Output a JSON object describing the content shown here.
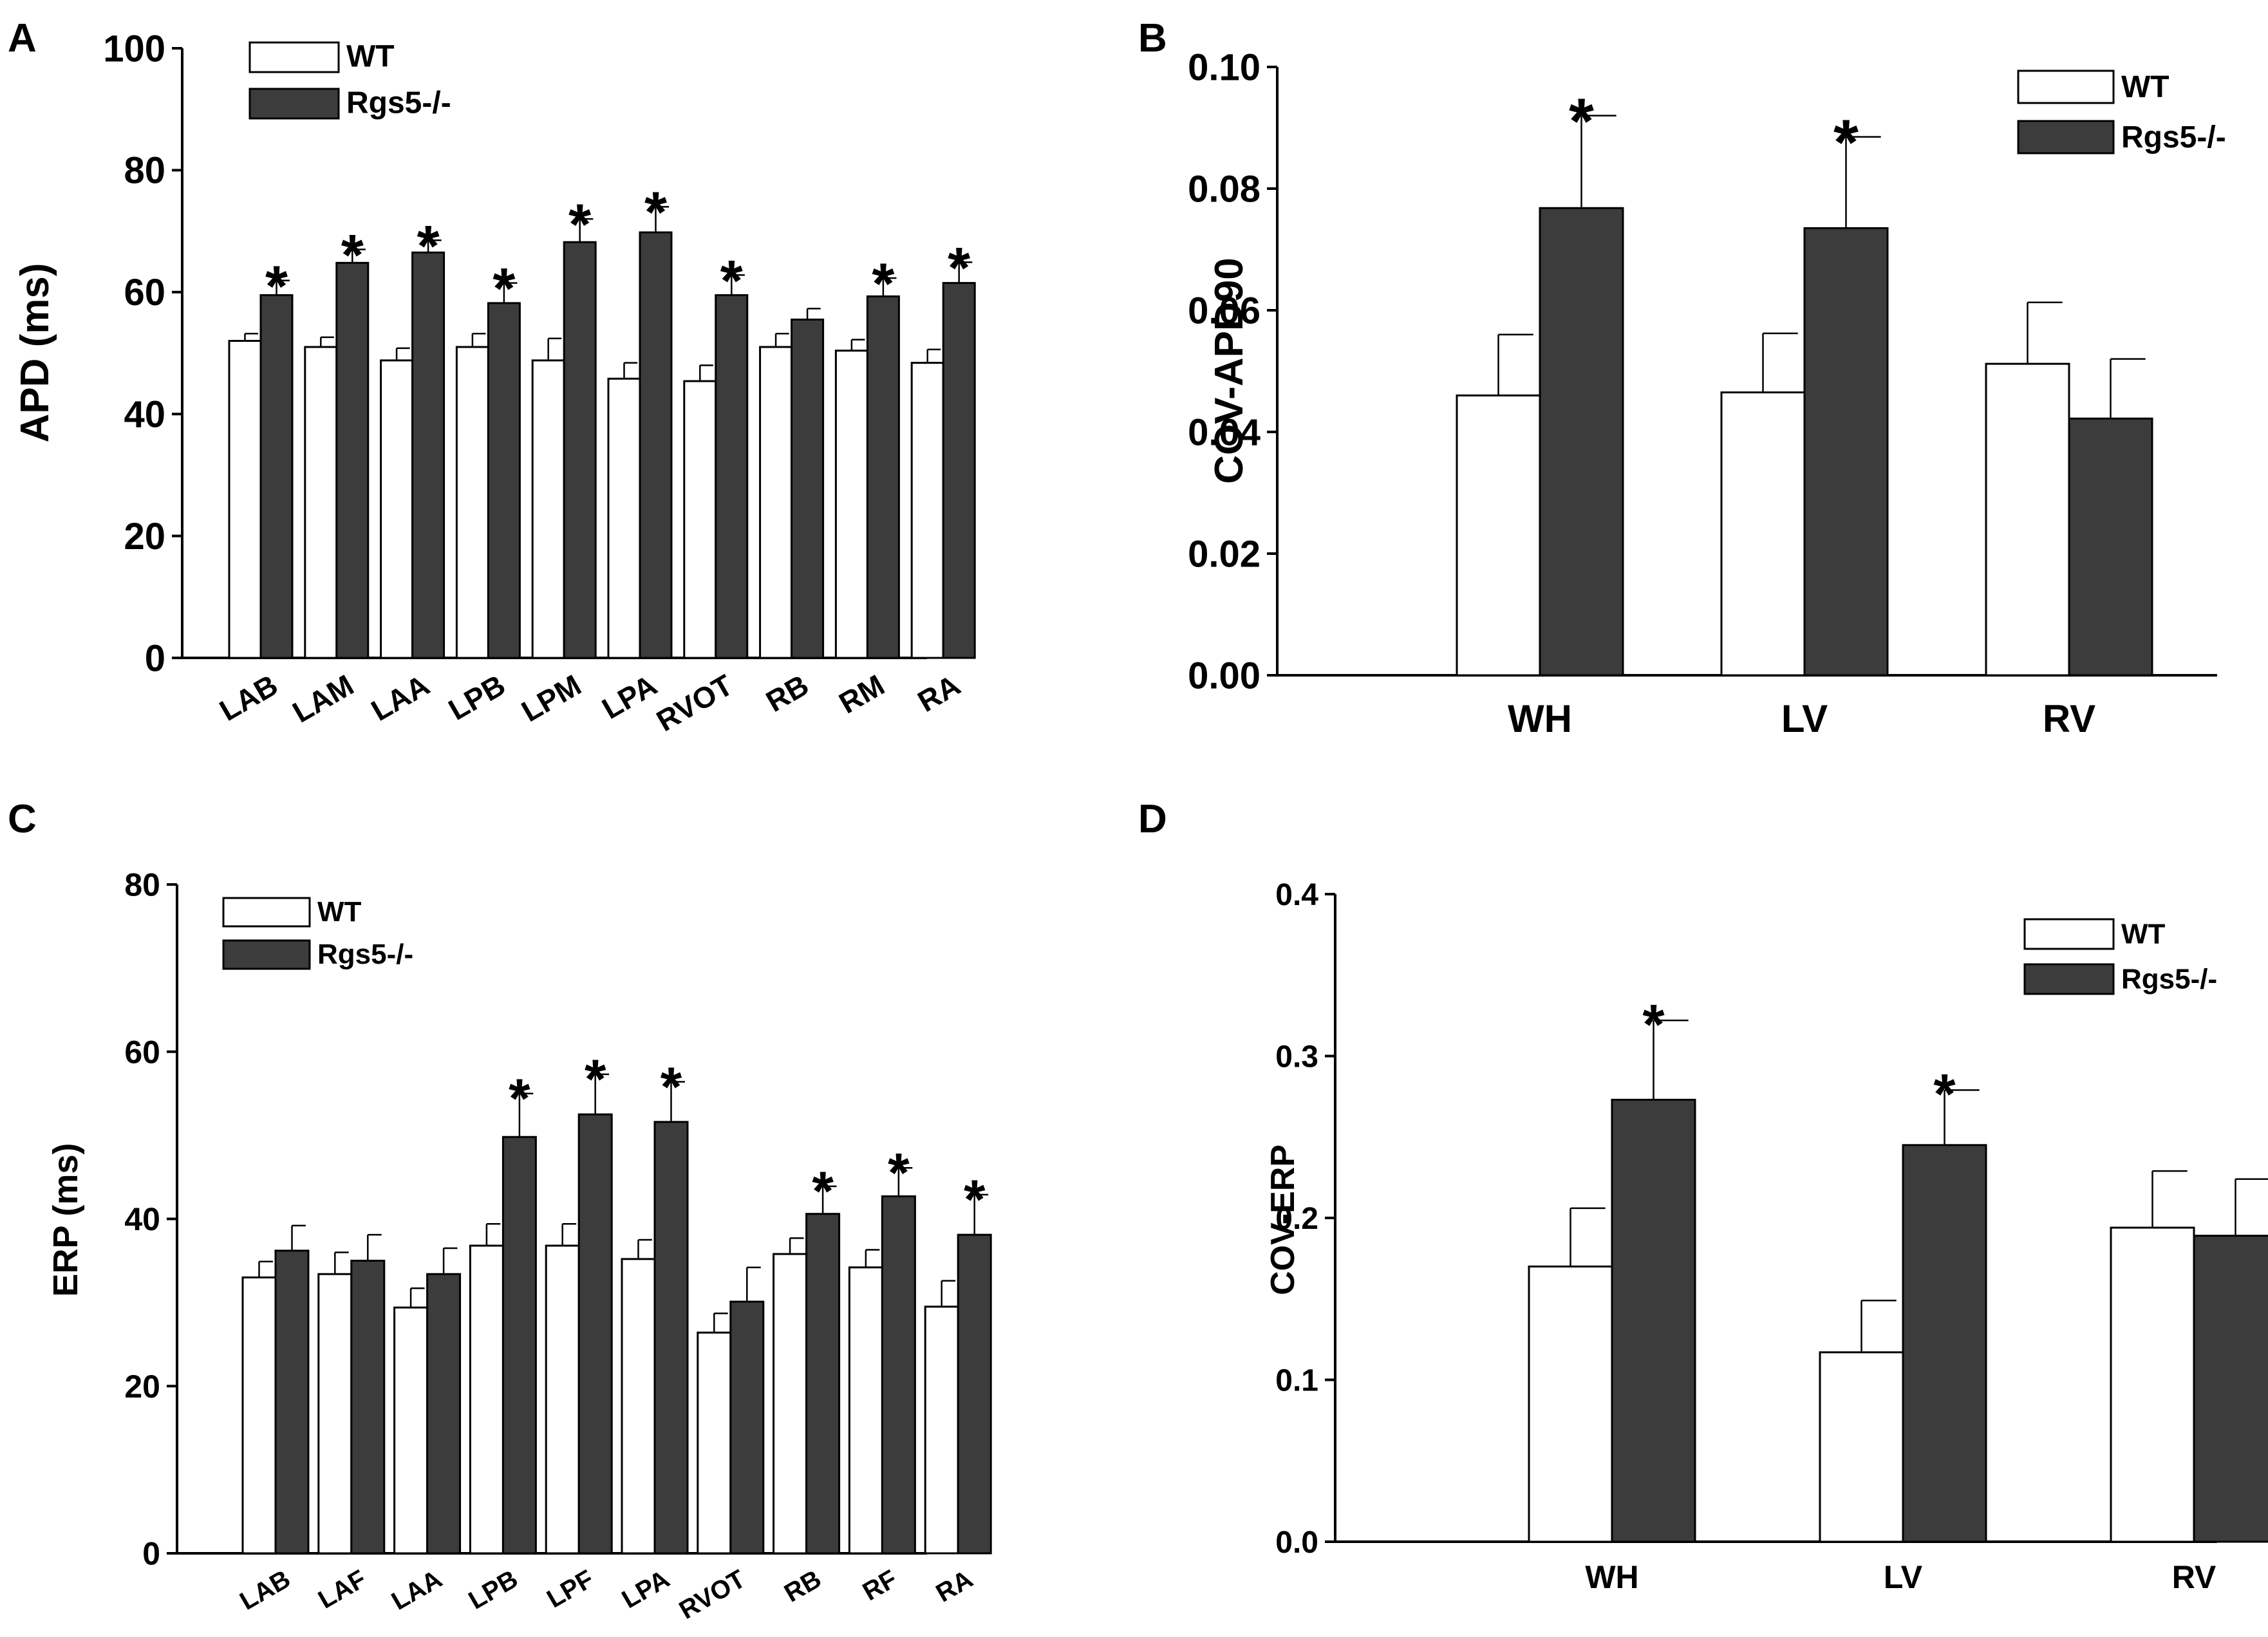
{
  "colors": {
    "wt": "#ffffff",
    "ko": "#3c3c3c",
    "axis": "#000000"
  },
  "chart_data": [
    {
      "type": "bar",
      "panel_label": "A",
      "title": "",
      "xlabel": "",
      "ylabel": "APD (ms)",
      "ylim": [
        0,
        100
      ],
      "yticks": [
        "0",
        "20",
        "40",
        "60",
        "80",
        "100"
      ],
      "categories": [
        "LAB",
        "LAM",
        "LAA",
        "LPB",
        "LPM",
        "LPA",
        "RVOT",
        "RB",
        "RM",
        "RA"
      ],
      "legend_position": "top-left",
      "series": [
        {
          "name": "WT",
          "values": [
            52,
            51,
            48.8,
            51,
            48.8,
            45.8,
            45.4,
            51,
            50.4,
            48.4
          ],
          "errors": [
            1.2,
            1.6,
            2.0,
            2.2,
            3.6,
            2.6,
            2.6,
            2.2,
            1.8,
            2.2
          ]
        },
        {
          "name": "Rgs5-/-",
          "values": [
            59.5,
            64.8,
            66.5,
            58.2,
            68.2,
            69.8,
            59.5,
            55.5,
            59.3,
            61.5
          ],
          "errors": [
            2.4,
            2.2,
            2.0,
            3.3,
            3.8,
            4.2,
            3.3,
            1.8,
            3.0,
            3.4
          ]
        }
      ],
      "significance": [
        "*",
        "*",
        "*",
        "*",
        "*",
        "*",
        "*",
        "",
        "*",
        "*"
      ]
    },
    {
      "type": "bar",
      "panel_label": "B",
      "title": "",
      "xlabel": "",
      "ylabel": "COV-APD90",
      "ylim": [
        0,
        0.1
      ],
      "yticks": [
        "0.00",
        "0.02",
        "0.04",
        "0.06",
        "0.08",
        "0.10"
      ],
      "categories": [
        "WH",
        "LV",
        "RV"
      ],
      "legend_position": "top-right",
      "series": [
        {
          "name": "WT",
          "values": [
            0.046,
            0.0465,
            0.0512
          ],
          "errors": [
            0.01,
            0.0097,
            0.0101
          ]
        },
        {
          "name": "Rgs5-/-",
          "values": [
            0.0768,
            0.0735,
            0.0422
          ],
          "errors": [
            0.0152,
            0.015,
            0.0098
          ]
        }
      ],
      "significance": [
        "*",
        "*",
        ""
      ]
    },
    {
      "type": "bar",
      "panel_label": "C",
      "title": "",
      "xlabel": "",
      "ylabel": "ERP (ms)",
      "ylim": [
        0,
        80
      ],
      "yticks": [
        "0",
        "20",
        "40",
        "60",
        "80"
      ],
      "categories": [
        "LAB",
        "LAF",
        "LAA",
        "LPB",
        "LPF",
        "LPA",
        "RVOT",
        "RB",
        "RF",
        "RA"
      ],
      "legend_position": "top-left",
      "series": [
        {
          "name": "WT",
          "values": [
            33,
            33.4,
            29.4,
            36.8,
            36.8,
            35.2,
            26.4,
            35.8,
            34.2,
            29.5
          ],
          "errors": [
            1.9,
            2.6,
            2.3,
            2.6,
            2.6,
            2.3,
            2.3,
            1.9,
            2.1,
            3.1
          ]
        },
        {
          "name": "Rgs5-/-",
          "values": [
            36.2,
            35,
            33.4,
            49.8,
            52.5,
            51.6,
            30.1,
            40.6,
            42.7,
            38.1
          ],
          "errors": [
            3.0,
            3.1,
            3.1,
            5.2,
            4.8,
            4.8,
            4.1,
            3.3,
            3.4,
            4.8
          ]
        }
      ],
      "significance": [
        "",
        "",
        "",
        "*",
        "*",
        "*",
        "",
        "*",
        "*",
        "*"
      ]
    },
    {
      "type": "bar",
      "panel_label": "D",
      "title": "",
      "xlabel": "",
      "ylabel": "COV-ERP",
      "ylim": [
        0,
        0.4
      ],
      "yticks": [
        "0.0",
        "0.1",
        "0.2",
        "0.3",
        "0.4"
      ],
      "categories": [
        "WH",
        "LV",
        "RV"
      ],
      "legend_position": "top-right",
      "series": [
        {
          "name": "WT",
          "values": [
            0.17,
            0.117,
            0.194
          ],
          "errors": [
            0.036,
            0.032,
            0.035
          ]
        },
        {
          "name": "Rgs5-/-",
          "values": [
            0.273,
            0.245,
            0.189
          ],
          "errors": [
            0.049,
            0.034,
            0.035
          ]
        }
      ],
      "significance": [
        "*",
        "*",
        ""
      ]
    }
  ]
}
